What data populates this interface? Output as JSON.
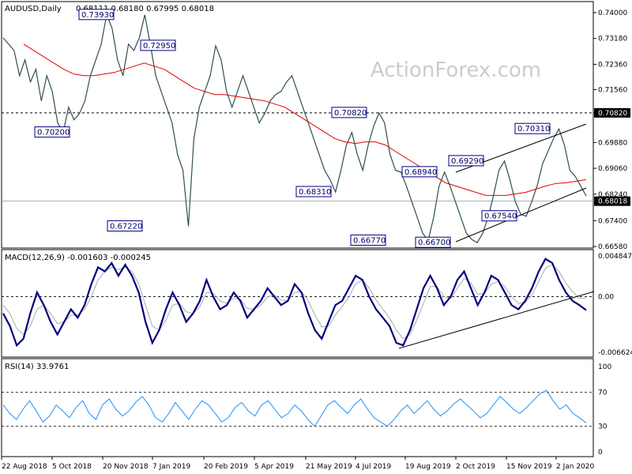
{
  "chart_data": {
    "type": "line",
    "symbol_title": "AUDUSD,Daily",
    "ohlc": "0.68111 0.68180 0.67995 0.68018",
    "watermark": "ActionForex.com",
    "price_axis": [
      "0.74000",
      "0.73180",
      "0.72360",
      "0.71560",
      "0.70820",
      "0.69880",
      "0.69060",
      "0.68240",
      "0.67400",
      "0.66580"
    ],
    "price_ylim": [
      0.6658,
      0.74
    ],
    "current_price": "0.68018",
    "resistance_level": "0.70820",
    "x_ticks": [
      "22 Aug 2018",
      "5 Oct 2018",
      "20 Nov 2018",
      "7 Jan 2019",
      "20 Feb 2019",
      "5 Apr 2019",
      "21 May 2019",
      "4 Jul 2019",
      "19 Aug 2019",
      "2 Oct 2019",
      "15 Nov 2019",
      "2 Jan 2020"
    ],
    "swing_labels": [
      {
        "text": "0.73930",
        "value": 0.7393
      },
      {
        "text": "0.70200",
        "value": 0.702
      },
      {
        "text": "0.72950",
        "value": 0.7295
      },
      {
        "text": "0.67220",
        "value": 0.6722
      },
      {
        "text": "0.70820",
        "value": 0.7082
      },
      {
        "text": "0.68310",
        "value": 0.6831
      },
      {
        "text": "0.68940",
        "value": 0.6894
      },
      {
        "text": "0.66770",
        "value": 0.6677
      },
      {
        "text": "0.66700",
        "value": 0.667
      },
      {
        "text": "0.69290",
        "value": 0.6929
      },
      {
        "text": "0.67540",
        "value": 0.6754
      },
      {
        "text": "0.70310",
        "value": 0.7031
      }
    ],
    "price_series": [
      0.732,
      0.73,
      0.728,
      0.72,
      0.725,
      0.718,
      0.722,
      0.712,
      0.72,
      0.715,
      0.705,
      0.702,
      0.71,
      0.706,
      0.708,
      0.712,
      0.72,
      0.725,
      0.73,
      0.7393,
      0.735,
      0.725,
      0.72,
      0.73,
      0.728,
      0.732,
      0.7393,
      0.73,
      0.72,
      0.715,
      0.71,
      0.705,
      0.695,
      0.69,
      0.6722,
      0.7,
      0.71,
      0.715,
      0.72,
      0.7295,
      0.725,
      0.715,
      0.71,
      0.715,
      0.72,
      0.715,
      0.71,
      0.705,
      0.708,
      0.712,
      0.714,
      0.715,
      0.718,
      0.72,
      0.715,
      0.71,
      0.705,
      0.7,
      0.695,
      0.69,
      0.687,
      0.6831,
      0.69,
      0.698,
      0.702,
      0.695,
      0.69,
      0.698,
      0.704,
      0.7082,
      0.705,
      0.695,
      0.69,
      0.6894,
      0.685,
      0.68,
      0.675,
      0.67,
      0.6677,
      0.675,
      0.685,
      0.6894,
      0.685,
      0.68,
      0.675,
      0.67,
      0.668,
      0.667,
      0.67,
      0.675,
      0.682,
      0.69,
      0.6929,
      0.687,
      0.68,
      0.676,
      0.6754,
      0.68,
      0.685,
      0.692,
      0.696,
      0.7,
      0.7031,
      0.698,
      0.69,
      0.688,
      0.685,
      0.6818
    ],
    "ma_series": [
      0.73,
      0.728,
      0.726,
      0.724,
      0.722,
      0.7205,
      0.72,
      0.72,
      0.7205,
      0.721,
      0.722,
      0.723,
      0.724,
      0.723,
      0.722,
      0.72,
      0.718,
      0.716,
      0.715,
      0.714,
      0.714,
      0.7135,
      0.713,
      0.7125,
      0.712,
      0.711,
      0.71,
      0.708,
      0.706,
      0.704,
      0.702,
      0.7,
      0.699,
      0.6985,
      0.699,
      0.699,
      0.698,
      0.696,
      0.694,
      0.692,
      0.69,
      0.688,
      0.686,
      0.685,
      0.684,
      0.683,
      0.682,
      0.682,
      0.682,
      0.6825,
      0.683,
      0.684,
      0.685,
      0.6858,
      0.686,
      0.6865,
      0.687
    ],
    "macd_title": "MACD(12,26,9) -0.001603 -0.000245",
    "macd_axis": [
      "0.004847",
      "0.00",
      "-0.006624"
    ],
    "macd_ylim": [
      -0.006624,
      0.004847
    ],
    "macd_series": [
      -0.002,
      -0.0035,
      -0.0058,
      -0.005,
      -0.002,
      0.0005,
      -0.001,
      -0.003,
      -0.0045,
      -0.003,
      -0.0015,
      -0.0025,
      -0.001,
      0.0015,
      0.0035,
      0.003,
      0.004,
      0.0025,
      0.0038,
      0.0025,
      0.0005,
      -0.003,
      -0.0055,
      -0.004,
      -0.0015,
      0.0005,
      -0.001,
      -0.003,
      -0.002,
      -0.0005,
      0.002,
      0.0,
      -0.0015,
      -0.001,
      0.0005,
      -0.0005,
      -0.0025,
      -0.0015,
      -0.0005,
      0.001,
      0.0,
      -0.001,
      -0.0005,
      0.0015,
      0.0005,
      -0.002,
      -0.004,
      -0.005,
      -0.003,
      -0.001,
      -0.0005,
      0.001,
      0.0025,
      0.002,
      0.0,
      -0.0015,
      -0.0025,
      -0.0035,
      -0.0055,
      -0.0058,
      -0.004,
      -0.0015,
      0.001,
      0.0025,
      0.001,
      -0.001,
      0.0,
      0.002,
      0.003,
      0.001,
      -0.001,
      0.0005,
      0.0025,
      0.002,
      0.0005,
      -0.001,
      -0.0015,
      -0.0005,
      0.001,
      0.003,
      0.0045,
      0.004,
      0.002,
      0.0005,
      -0.0005,
      -0.001,
      -0.0016
    ],
    "macd_signal": [
      -0.001,
      -0.002,
      -0.0038,
      -0.0045,
      -0.0035,
      -0.0015,
      -0.001,
      -0.002,
      -0.0032,
      -0.003,
      -0.0022,
      -0.0022,
      -0.0015,
      0.0,
      0.002,
      0.003,
      0.0035,
      0.0032,
      0.0035,
      0.003,
      0.0015,
      -0.001,
      -0.0035,
      -0.004,
      -0.0028,
      -0.001,
      -0.0008,
      -0.0018,
      -0.002,
      -0.0012,
      0.0005,
      0.0004,
      -0.0005,
      -0.0008,
      -0.0002,
      -0.0003,
      -0.0014,
      -0.0015,
      -0.001,
      0.0,
      0.0002,
      -0.0004,
      -0.0005,
      0.0005,
      0.0006,
      -0.0005,
      -0.0022,
      -0.0036,
      -0.0035,
      -0.0022,
      -0.0012,
      0.0,
      0.0015,
      0.002,
      0.001,
      -0.0004,
      -0.0015,
      -0.0025,
      -0.004,
      -0.005,
      -0.0045,
      -0.0028,
      -0.0008,
      0.0012,
      0.0012,
      0.0,
      -0.0002,
      0.001,
      0.0022,
      0.0016,
      0.0003,
      0.0004,
      0.0015,
      0.0018,
      0.0012,
      0.0,
      -0.0008,
      -0.0007,
      0.0002,
      0.0018,
      0.0034,
      0.0038,
      0.003,
      0.0016,
      0.0006,
      -0.0002,
      -0.0002
    ],
    "rsi_title": "RSI(14) 33.9761",
    "rsi_axis": [
      "100",
      "70",
      "30",
      "0"
    ],
    "rsi_ylim": [
      0,
      100
    ],
    "rsi_series": [
      55,
      45,
      38,
      50,
      60,
      48,
      35,
      42,
      55,
      48,
      40,
      52,
      60,
      45,
      38,
      55,
      62,
      50,
      42,
      48,
      58,
      65,
      55,
      40,
      35,
      45,
      58,
      48,
      38,
      50,
      60,
      55,
      45,
      35,
      40,
      52,
      58,
      48,
      42,
      55,
      60,
      50,
      40,
      45,
      55,
      48,
      38,
      30,
      42,
      55,
      60,
      52,
      45,
      55,
      62,
      50,
      40,
      35,
      30,
      38,
      48,
      55,
      45,
      52,
      60,
      50,
      42,
      48,
      56,
      62,
      55,
      48,
      40,
      45,
      55,
      65,
      58,
      50,
      45,
      52,
      60,
      68,
      72,
      60,
      50,
      55,
      45,
      40,
      34
    ]
  }
}
